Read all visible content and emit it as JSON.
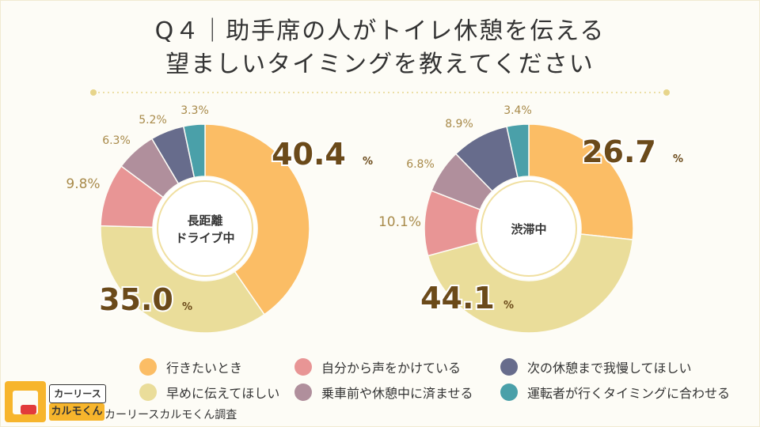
{
  "title": {
    "line1": "Q４｜助手席の人がトイレ休憩を伝える",
    "line2": "望ましいタイミングを教えてください"
  },
  "colors": {
    "background": "#fdfcf6",
    "divider": "#e7d58b",
    "label_big": "#6b4a1a",
    "label_small": "#a88a4a"
  },
  "chart_data": [
    {
      "type": "pie",
      "center_label": [
        "長距離",
        "ドライブ中"
      ],
      "labels": [
        "行きたいとき",
        "早めに伝えてほしい",
        "自分から声をかけている",
        "乗車前や休憩中に済ませる",
        "次の休憩まで我慢してほしい",
        "運転者が行くタイミングに合わせる"
      ],
      "values": [
        40.4,
        35.0,
        9.8,
        6.3,
        5.2,
        3.3
      ],
      "value_labels": [
        "40.4",
        "35.0",
        "9.8%",
        "6.3%",
        "5.2%",
        "3.3%"
      ],
      "colors": [
        "#fbbd65",
        "#eadd9a",
        "#e89595",
        "#b08f9c",
        "#676c8c",
        "#4aa0a9"
      ]
    },
    {
      "type": "pie",
      "center_label": [
        "渋滞中"
      ],
      "labels": [
        "行きたいとき",
        "早めに伝えてほしい",
        "自分から声をかけている",
        "乗車前や休憩中に済ませる",
        "次の休憩まで我慢してほしい",
        "運転者が行くタイミングに合わせる"
      ],
      "values": [
        26.7,
        44.1,
        10.1,
        6.8,
        8.9,
        3.4
      ],
      "value_labels": [
        "26.7",
        "44.1",
        "10.1%",
        "6.8%",
        "8.9%",
        "3.4%"
      ],
      "colors": [
        "#fbbd65",
        "#eadd9a",
        "#e89595",
        "#b08f9c",
        "#676c8c",
        "#4aa0a9"
      ]
    }
  ],
  "legend": [
    {
      "label": "行きたいとき",
      "color": "#fbbd65"
    },
    {
      "label": "自分から声をかけている",
      "color": "#e89595"
    },
    {
      "label": "次の休憩まで我慢してほしい",
      "color": "#676c8c"
    },
    {
      "label": "早めに伝えてほしい",
      "color": "#eadd9a"
    },
    {
      "label": "乗車前や休憩中に済ませる",
      "color": "#b08f9c"
    },
    {
      "label": "運転者が行くタイミングに合わせる",
      "color": "#4aa0a9"
    }
  ],
  "pct_sign": "%",
  "brand": {
    "top": "カーリース",
    "bottom": "カルモくん",
    "survey": "カーリースカルモくん調査"
  }
}
